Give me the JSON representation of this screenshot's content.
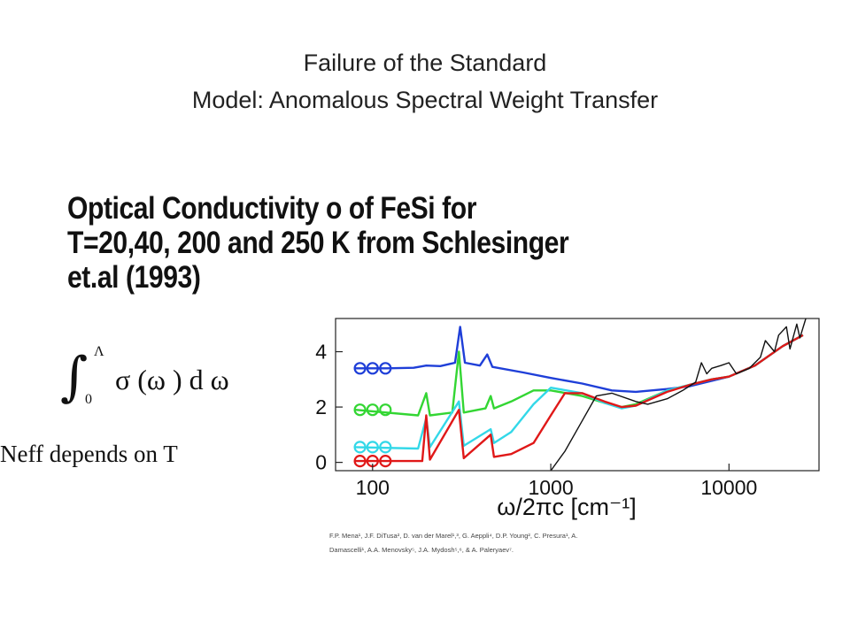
{
  "slide": {
    "title_line1": "Failure of the Standard",
    "title_line2": "Model: Anomalous Spectral Weight Transfer",
    "subtitle_line1": "Optical Conductivity o of FeSi for",
    "subtitle_line2": "T=20,40, 200 and 250 K from Schlesinger",
    "subtitle_line3": "et.al (1993)",
    "neff_text": "Neff depends on T",
    "credits_line1": "F.P. Mena¹, J.F. DiTusa², D. van der Marel¹,³, G. Aeppli⁴, D.P. Young², C. Presura¹, A.",
    "credits_line2": "Damascelli¹, A.A. Menovsky⁵, J.A. Mydosh⁵,⁶, & A. Paleryaev⁷."
  },
  "formula": {
    "lower_limit": "0",
    "upper_limit": "Λ",
    "integrand": "σ (ω ) d ω"
  },
  "chart_data": {
    "type": "line",
    "xlabel": "ω/2πc [cm⁻¹]",
    "ylabel": "",
    "xscale": "log",
    "xlim": [
      62,
      32000
    ],
    "ylim": [
      -0.3,
      5.2
    ],
    "xticks": [
      100,
      1000,
      10000
    ],
    "xtick_labels": [
      "100",
      "1000",
      "10000"
    ],
    "yticks": [
      0,
      2,
      4
    ],
    "ytick_labels": [
      "0",
      "2",
      "4"
    ],
    "grid": false,
    "legend": "bottom-right (small, illegible)",
    "series": [
      {
        "color": "#1f3fd8",
        "points": [
          [
            80,
            3.4
          ],
          [
            120,
            3.4
          ],
          [
            170,
            3.42
          ],
          [
            200,
            3.5
          ],
          [
            240,
            3.48
          ],
          [
            290,
            3.6
          ],
          [
            310,
            4.9
          ],
          [
            330,
            3.6
          ],
          [
            400,
            3.5
          ],
          [
            440,
            3.9
          ],
          [
            470,
            3.45
          ],
          [
            700,
            3.25
          ],
          [
            1000,
            3.05
          ],
          [
            1500,
            2.85
          ],
          [
            2200,
            2.6
          ],
          [
            3000,
            2.55
          ],
          [
            4500,
            2.65
          ],
          [
            6000,
            2.75
          ],
          [
            8000,
            2.95
          ],
          [
            10000,
            3.1
          ],
          [
            14000,
            3.5
          ],
          [
            20000,
            4.2
          ],
          [
            26000,
            4.6
          ]
        ]
      },
      {
        "color": "#33d633",
        "points": [
          [
            80,
            1.9
          ],
          [
            180,
            1.7
          ],
          [
            200,
            2.5
          ],
          [
            210,
            1.7
          ],
          [
            280,
            1.8
          ],
          [
            305,
            4.0
          ],
          [
            325,
            1.8
          ],
          [
            430,
            1.95
          ],
          [
            460,
            2.4
          ],
          [
            480,
            1.95
          ],
          [
            600,
            2.2
          ],
          [
            800,
            2.6
          ],
          [
            1000,
            2.6
          ],
          [
            1500,
            2.4
          ],
          [
            2000,
            2.15
          ],
          [
            2500,
            2.0
          ],
          [
            3000,
            2.1
          ],
          [
            4500,
            2.6
          ],
          [
            6000,
            2.8
          ],
          [
            8000,
            3.0
          ],
          [
            10000,
            3.1
          ],
          [
            14000,
            3.5
          ],
          [
            20000,
            4.2
          ],
          [
            26000,
            4.6
          ]
        ]
      },
      {
        "color": "#33d8e8",
        "points": [
          [
            80,
            0.55
          ],
          [
            180,
            0.5
          ],
          [
            200,
            1.6
          ],
          [
            210,
            0.55
          ],
          [
            305,
            2.2
          ],
          [
            325,
            0.6
          ],
          [
            460,
            1.2
          ],
          [
            480,
            0.7
          ],
          [
            600,
            1.1
          ],
          [
            800,
            2.1
          ],
          [
            1000,
            2.7
          ],
          [
            1500,
            2.5
          ],
          [
            2000,
            2.15
          ],
          [
            2500,
            1.95
          ],
          [
            3000,
            2.05
          ],
          [
            4500,
            2.6
          ],
          [
            6000,
            2.8
          ],
          [
            8000,
            3.0
          ],
          [
            10000,
            3.1
          ],
          [
            14000,
            3.5
          ],
          [
            20000,
            4.2
          ],
          [
            26000,
            4.6
          ]
        ]
      },
      {
        "color": "#e01818",
        "points": [
          [
            80,
            0.05
          ],
          [
            190,
            0.05
          ],
          [
            200,
            1.7
          ],
          [
            210,
            0.1
          ],
          [
            305,
            1.9
          ],
          [
            325,
            0.15
          ],
          [
            460,
            1.0
          ],
          [
            480,
            0.2
          ],
          [
            600,
            0.3
          ],
          [
            800,
            0.7
          ],
          [
            1000,
            1.7
          ],
          [
            1200,
            2.5
          ],
          [
            1500,
            2.5
          ],
          [
            2000,
            2.2
          ],
          [
            2500,
            2.0
          ],
          [
            3000,
            2.05
          ],
          [
            4500,
            2.55
          ],
          [
            6000,
            2.8
          ],
          [
            8000,
            3.0
          ],
          [
            10000,
            3.1
          ],
          [
            14000,
            3.5
          ],
          [
            20000,
            4.2
          ],
          [
            26000,
            4.6
          ]
        ]
      },
      {
        "color": "#111111",
        "points": [
          [
            1000,
            -0.3
          ],
          [
            1200,
            0.4
          ],
          [
            1500,
            1.5
          ],
          [
            1800,
            2.4
          ],
          [
            2200,
            2.5
          ],
          [
            3000,
            2.2
          ],
          [
            3500,
            2.1
          ],
          [
            4500,
            2.3
          ],
          [
            5500,
            2.6
          ],
          [
            6500,
            2.9
          ],
          [
            7000,
            3.6
          ],
          [
            7500,
            3.2
          ],
          [
            8000,
            3.4
          ],
          [
            9000,
            3.5
          ],
          [
            10000,
            3.6
          ],
          [
            11000,
            3.2
          ],
          [
            13000,
            3.4
          ],
          [
            15000,
            3.8
          ],
          [
            16000,
            4.4
          ],
          [
            18000,
            4.0
          ],
          [
            19000,
            4.6
          ],
          [
            21000,
            4.9
          ],
          [
            22000,
            4.1
          ],
          [
            24000,
            5.0
          ],
          [
            25000,
            4.5
          ],
          [
            27000,
            5.2
          ]
        ]
      }
    ],
    "circle_markers": [
      {
        "color": "#1f3fd8",
        "y": 3.4,
        "x": [
          85,
          100,
          118
        ]
      },
      {
        "color": "#33d633",
        "y": 1.9,
        "x": [
          85,
          100,
          118
        ]
      },
      {
        "color": "#33d8e8",
        "y": 0.55,
        "x": [
          85,
          100,
          118
        ]
      },
      {
        "color": "#e01818",
        "y": 0.05,
        "x": [
          85,
          100,
          118
        ]
      }
    ]
  }
}
